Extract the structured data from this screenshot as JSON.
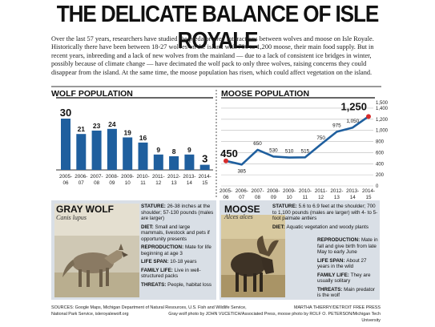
{
  "title": "THE DELICATE BALANCE OF ISLE ROYALE",
  "intro": "Over the last 57 years, researchers have studied the predator-prey interactions between wolves and moose on Isle Royale. Historically there have been between 18-27 wolves on the island with 700 to 1,200 moose, their main food supply. But in recent years, inbreeding and a lack of new wolves from the mainland — due to a lack of consistent ice bridges in winter, possibly because of climate change — have decimated the wolf pack to only three wolves, raising concerns they could disappear from the island. At the same time, the moose population has risen, which could affect vegetation on the island.",
  "colors": {
    "wolf_bar": "#1f5f9e",
    "moose_line": "#1f5f9e",
    "moose_endpoint": "#d62b2b",
    "panel_bg": "#d9dfe6"
  },
  "chart_data": [
    {
      "type": "bar",
      "title": "WOLF POPULATION",
      "categories": [
        "2005-06",
        "2006-07",
        "2007-08",
        "2008-09",
        "2009-10",
        "2010-11",
        "2011-12",
        "2012-13",
        "2013-14",
        "2014-15"
      ],
      "category_labels": [
        [
          "2005-",
          "06"
        ],
        [
          "2006-",
          "07"
        ],
        [
          "2007-",
          "08"
        ],
        [
          "2008-",
          "09"
        ],
        [
          "2009-",
          "10"
        ],
        [
          "2010-",
          "11"
        ],
        [
          "2011-",
          "12"
        ],
        [
          "2012-",
          "13"
        ],
        [
          "2013-",
          "14"
        ],
        [
          "2014-",
          "15"
        ]
      ],
      "values": [
        30,
        21,
        23,
        24,
        19,
        16,
        9,
        8,
        9,
        3
      ],
      "value_labels": [
        "30",
        "21",
        "23",
        "24",
        "19",
        "16",
        "9",
        "8",
        "9",
        "3"
      ],
      "ylim": [
        0,
        32
      ],
      "grid": false
    },
    {
      "type": "line",
      "title": "MOOSE POPULATION",
      "categories": [
        "2005-06",
        "2006-07",
        "2007-08",
        "2008-09",
        "2009-10",
        "2010-11",
        "2011-12",
        "2012-13",
        "2013-14",
        "2014-15"
      ],
      "category_labels": [
        [
          "2005-",
          "06"
        ],
        [
          "2006-",
          "07"
        ],
        [
          "2007-",
          "08"
        ],
        [
          "2008-",
          "09"
        ],
        [
          "2009-",
          "10"
        ],
        [
          "2010-",
          "11"
        ],
        [
          "2011-",
          "12"
        ],
        [
          "2012-",
          "13"
        ],
        [
          "2013-",
          "14"
        ],
        [
          "2014-",
          "15"
        ]
      ],
      "values": [
        450,
        385,
        650,
        530,
        510,
        515,
        750,
        975,
        1050,
        1250
      ],
      "value_labels": [
        "450",
        "385",
        "650",
        "530",
        "510",
        "515",
        "750",
        "975",
        "1,050",
        "1,250"
      ],
      "ylim": [
        0,
        1500
      ],
      "yticks": [
        0,
        200,
        400,
        600,
        800,
        1000,
        1200,
        1400
      ],
      "ytick_labels": [
        "0",
        "200",
        "400",
        "600",
        "800",
        "1,000",
        "1,200",
        "1,400"
      ],
      "ytick_extra": [
        {
          "value": 1500,
          "label": "1,500"
        }
      ],
      "grid": true
    }
  ],
  "wolf_facts": {
    "name": "GRAY WOLF",
    "scientific": "Canis lupus",
    "items": [
      {
        "label": "STATURE:",
        "text": "26-38 inches at the shoulder; 57-130 pounds (males are larger)"
      },
      {
        "label": "DIET:",
        "text": "Small and large mammals, livestock and pets if opportunity presents"
      },
      {
        "label": "REPRODUCTION:",
        "text": "Mate for life beginning at age 3"
      },
      {
        "label": "LIFE SPAN:",
        "text": "10-18 years"
      },
      {
        "label": "FAMILY LIFE:",
        "text": "Live in well-structured packs"
      },
      {
        "label": "THREATS:",
        "text": "People, habitat loss"
      }
    ]
  },
  "moose_facts": {
    "name": "MOOSE",
    "scientific": "Alces alces",
    "items": [
      {
        "label": "STATURE:",
        "text": "5.6 to 6.9 feet at the shoulder; 700 to 1,100 pounds (males are larger) with 4- to 5-foot palmate antlers"
      },
      {
        "label": "DIET:",
        "text": "Aquatic vegetation and woody plants"
      },
      {
        "label": "REPRODUCTION:",
        "text": "Mate in fall and give birth from late May to early June"
      },
      {
        "label": "LIFE SPAN:",
        "text": "About 27 years in the wild"
      },
      {
        "label": "FAMILY LIFE:",
        "text": "They are usually solitary"
      },
      {
        "label": "THREATS:",
        "text": "Main predator is the wolf"
      }
    ]
  },
  "credits": {
    "sources_line1": "SOURCES: Google Maps, Michigan Department of Natural Resources, U.S. Fish and Wildlife Service,",
    "sources_line2": "National Park Service, isleroyalewolf.org",
    "artist": "MARTHA THIERRY/DETROIT FREE PRESS",
    "photos": "Gray wolf photo by JOHN VUCETICH/Associated Press, moose photo by ROLF O. PETERSON/Michigan Tech University"
  }
}
